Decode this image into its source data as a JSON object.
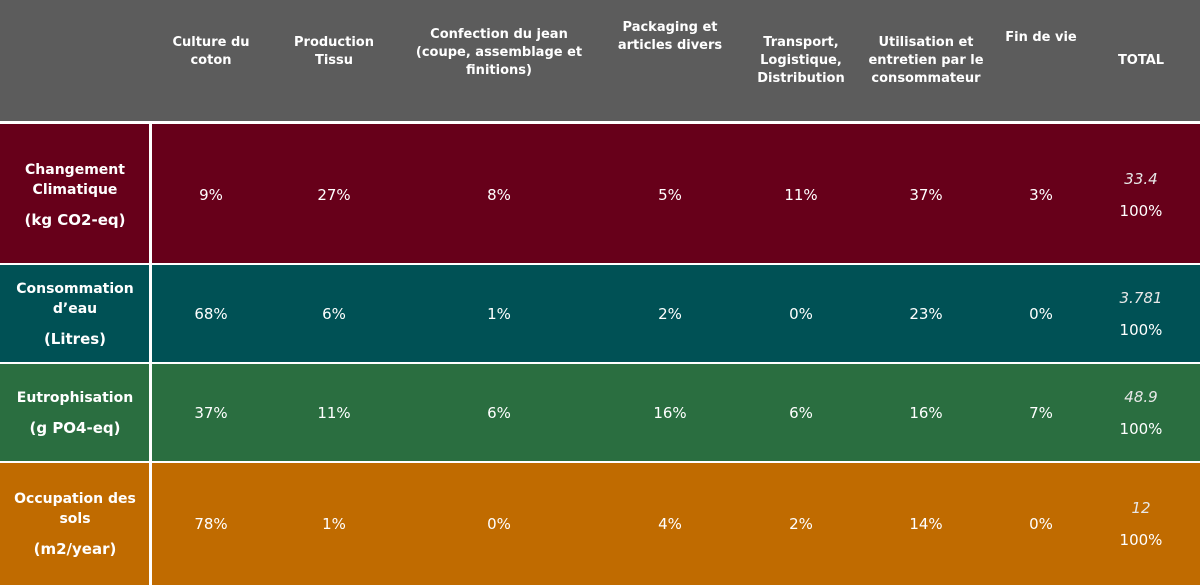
{
  "chart_data": {
    "type": "table",
    "columns": [
      "Culture du\ncoton",
      "Production\nTissu",
      "Confection du jean\n(coupe, assemblage et\nfinitions)",
      "Packaging et\narticles divers",
      "Transport,\nLogistique,\nDistribution",
      "Utilisation et\nentretien par le\nconsommateur",
      "Fin de vie",
      "TOTAL"
    ],
    "rows": [
      {
        "name": "Changement\nClimatique",
        "unit": "(kg CO2-eq)",
        "color": "#67001a",
        "values": [
          "9%",
          "27%",
          "8%",
          "5%",
          "11%",
          "37%",
          "3%"
        ],
        "total_value": "33.4",
        "total_percent": "100%"
      },
      {
        "name": "Consommation\nd’eau",
        "unit": "(Litres)",
        "color": "#005155",
        "values": [
          "68%",
          "6%",
          "1%",
          "2%",
          "0%",
          "23%",
          "0%"
        ],
        "total_value": "3.781",
        "total_percent": "100%"
      },
      {
        "name": "Eutrophisation",
        "unit": "(g PO4-eq)",
        "color": "#2a6e40",
        "values": [
          "37%",
          "11%",
          "6%",
          "16%",
          "6%",
          "16%",
          "7%"
        ],
        "total_value": "48.9",
        "total_percent": "100%"
      },
      {
        "name": "Occupation des\nsols",
        "unit": "(m2/year)",
        "color": "#c06b00",
        "values": [
          "78%",
          "1%",
          "0%",
          "4%",
          "2%",
          "14%",
          "0%"
        ],
        "total_value": "12",
        "total_percent": "100%"
      }
    ],
    "header_color": "#5c5c5c"
  }
}
